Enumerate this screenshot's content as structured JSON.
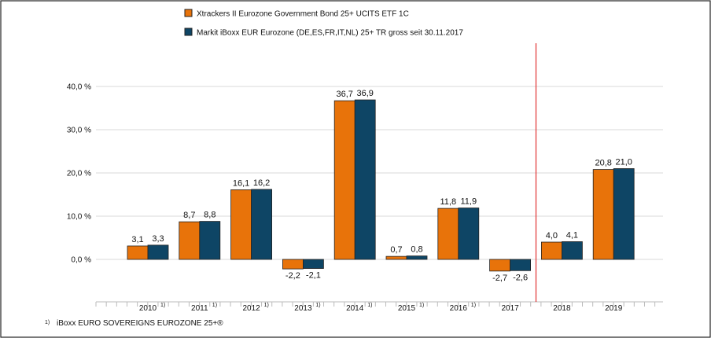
{
  "chart_data": {
    "type": "bar",
    "categories": [
      "2010",
      "2011",
      "2012",
      "2013",
      "2014",
      "2015",
      "2016",
      "2017",
      "2018",
      "2019"
    ],
    "category_footnotes": [
      "1)",
      "1)",
      "1)",
      "1)",
      "1)",
      "1)",
      "1)",
      "",
      "",
      ""
    ],
    "series": [
      {
        "name": "Xtrackers II Eurozone Government Bond 25+ UCITS ETF  1C",
        "color": "#E8730A",
        "values": [
          3.1,
          8.7,
          16.1,
          -2.2,
          36.7,
          0.7,
          11.8,
          -2.7,
          4.0,
          20.8
        ],
        "labels": [
          "3,1",
          "8,7",
          "16,1",
          "-2,2",
          "36,7",
          "0,7",
          "11,8",
          "-2,7",
          "4,0",
          "20,8"
        ]
      },
      {
        "name": "Markit iBoxx EUR Eurozone (DE,ES,FR,IT,NL) 25+ TR gross seit 30.11.2017",
        "color": "#0E4565",
        "values": [
          3.3,
          8.8,
          16.2,
          -2.1,
          36.9,
          0.8,
          11.9,
          -2.6,
          4.1,
          21.0
        ],
        "labels": [
          "3,3",
          "8,8",
          "16,2",
          "-2,1",
          "36,9",
          "0,8",
          "11,9",
          "-2,6",
          "4,1",
          "21,0"
        ]
      }
    ],
    "yticks": [
      0,
      10,
      20,
      30,
      40
    ],
    "ytick_labels": [
      "0,0 %",
      "10,0 %",
      "20,0 %",
      "30,0 %",
      "40,0 %"
    ],
    "ylim": [
      -7,
      46
    ],
    "grid": true,
    "legend_position": "top",
    "marker_line_after_category": "2017",
    "marker_line_color": "#E03030",
    "footnote_mark": "1)",
    "footnote": "iBoxx EURO SOVEREIGNS EUROZONE 25+®"
  }
}
